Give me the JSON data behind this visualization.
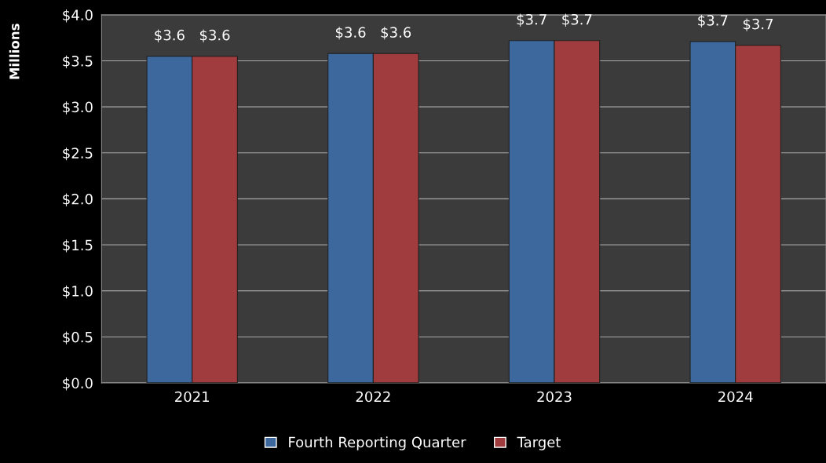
{
  "chart_data": {
    "type": "bar",
    "ylabel": "Millions",
    "categories": [
      "2021",
      "2022",
      "2023",
      "2024"
    ],
    "series": [
      {
        "name": "Fourth Reporting Quarter",
        "color": "#3c689e",
        "values": [
          3.55,
          3.58,
          3.72,
          3.71
        ],
        "value_labels": [
          "$3.6",
          "$3.6",
          "$3.7",
          "$3.7"
        ]
      },
      {
        "name": "Target",
        "color": "#a13c3e",
        "values": [
          3.55,
          3.58,
          3.72,
          3.67
        ],
        "value_labels": [
          "$3.6",
          "$3.6",
          "$3.7",
          "$3.7"
        ]
      }
    ],
    "ylim": [
      0,
      4
    ],
    "yticks": [
      {
        "value": 0,
        "label": "$0.0"
      },
      {
        "value": 0.5,
        "label": "$0.5"
      },
      {
        "value": 1,
        "label": "$1.0"
      },
      {
        "value": 1.5,
        "label": "$1.5"
      },
      {
        "value": 2,
        "label": "$2.0"
      },
      {
        "value": 2.5,
        "label": "$2.5"
      },
      {
        "value": 3,
        "label": "$3.0"
      },
      {
        "value": 3.5,
        "label": "$3.5"
      },
      {
        "value": 4,
        "label": "$4.0"
      }
    ],
    "grid": "y",
    "legend": "bottom"
  }
}
